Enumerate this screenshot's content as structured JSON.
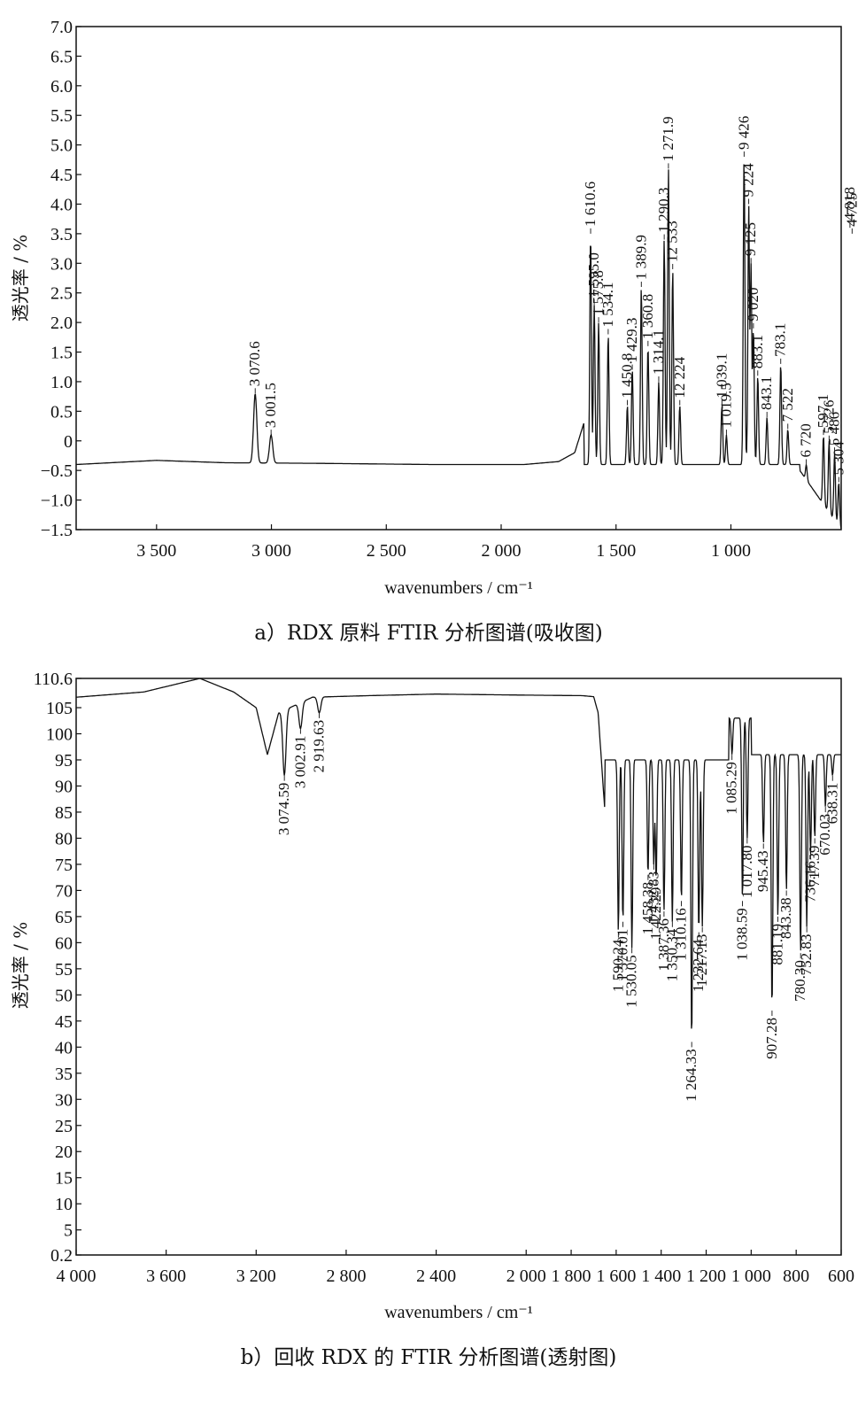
{
  "chart_data": [
    {
      "type": "line",
      "xlabel": "wavenumbers / cm⁻¹",
      "ylabel": "透光率 / %",
      "caption": "a）RDX 原料 FTIR 分析图谱(吸收图)",
      "xlim": [
        3850,
        520
      ],
      "ylim": [
        -1.5,
        7.0
      ],
      "x_ticks": [
        3500,
        3000,
        2500,
        2000,
        1500,
        1000
      ],
      "x_tick_labels": [
        "3 500",
        "3 000",
        "2 500",
        "2 000",
        "1 500",
        "1 000"
      ],
      "y_ticks": [
        -1.5,
        -1.0,
        -0.5,
        0,
        0.5,
        1.0,
        1.5,
        2.0,
        2.5,
        3.0,
        3.5,
        4.0,
        4.5,
        5.0,
        5.5,
        6.0,
        6.5,
        7.0
      ],
      "y_tick_labels": [
        "−1.5",
        "−1.0",
        "−0.5",
        "0",
        "0.5",
        "1.0",
        "1.5",
        "2.0",
        "2.5",
        "3.0",
        "3.5",
        "4.0",
        "4.5",
        "5.0",
        "5.5",
        "6.0",
        "6.5",
        "7.0"
      ],
      "baseline": -0.4,
      "background_points": [
        [
          3850,
          -0.4
        ],
        [
          3500,
          -0.33
        ],
        [
          3200,
          -0.37
        ],
        [
          2800,
          -0.38
        ],
        [
          2300,
          -0.4
        ],
        [
          1900,
          -0.4
        ],
        [
          1750,
          -0.35
        ],
        [
          1680,
          -0.2
        ],
        [
          1640,
          0.3
        ]
      ],
      "peaks": [
        {
          "label": "3 070.6",
          "x": 3070.6,
          "y": 0.8
        },
        {
          "label": "3 001.5",
          "x": 3001.5,
          "y": 0.1
        },
        {
          "label": "1 610.6",
          "x": 1610.6,
          "y": 3.5
        },
        {
          "label": "1 595.0",
          "x": 1595.0,
          "y": 2.3
        },
        {
          "label": "1 575.8",
          "x": 1575.8,
          "y": 2.0
        },
        {
          "label": "1 534.1",
          "x": 1534.1,
          "y": 1.8
        },
        {
          "label": "1 450.8",
          "x": 1450.8,
          "y": 0.6
        },
        {
          "label": "1 429.3",
          "x": 1429.3,
          "y": 1.2
        },
        {
          "label": "1 389.9",
          "x": 1389.9,
          "y": 2.6
        },
        {
          "label": "1 360.8",
          "x": 1360.8,
          "y": 1.6
        },
        {
          "label": "1 314.1",
          "x": 1314.1,
          "y": 1.0
        },
        {
          "label": "1 290.3",
          "x": 1290.3,
          "y": 3.4
        },
        {
          "label": "1 271.9",
          "x": 1271.9,
          "y": 4.6
        },
        {
          "label": "12 533",
          "x": 1253.3,
          "y": 2.9
        },
        {
          "label": "12 224",
          "x": 1222.4,
          "y": 0.6
        },
        {
          "label": "1 039.1",
          "x": 1039.1,
          "y": 0.6
        },
        {
          "label": "1 019.5",
          "x": 1019.5,
          "y": 0.1
        },
        {
          "label": "9 426",
          "x": 942.6,
          "y": 4.8
        },
        {
          "label": "9 224",
          "x": 922.4,
          "y": 4.0
        },
        {
          "label": "9 125",
          "x": 912.5,
          "y": 3.0
        },
        {
          "label": "9 020",
          "x": 902.0,
          "y": 1.9
        },
        {
          "label": "883.1",
          "x": 883.1,
          "y": 1.1
        },
        {
          "label": "843.1",
          "x": 843.1,
          "y": 0.4
        },
        {
          "label": "783.1",
          "x": 783.1,
          "y": 1.3
        },
        {
          "label": "7 522",
          "x": 752.2,
          "y": 0.2
        },
        {
          "label": "6 720",
          "x": 672.0,
          "y": -0.4
        },
        {
          "label": "597.1",
          "x": 597.1,
          "y": 0.1
        },
        {
          "label": "5 726",
          "x": 572.6,
          "y": 0.0
        },
        {
          "label": "5 486",
          "x": 548.6,
          "y": -0.2
        },
        {
          "label": "5 304",
          "x": 530.4,
          "y": -0.7
        },
        {
          "label": "4 818",
          "x": 481.8,
          "y": 3.6
        },
        {
          "label": "4 725",
          "x": 472.5,
          "y": 3.5
        }
      ]
    },
    {
      "type": "line",
      "xlabel": "wavenumbers / cm⁻¹",
      "ylabel": "透光率 / %",
      "caption": "b）回收 RDX 的 FTIR 分析图谱(透射图)",
      "xlim": [
        4000,
        600
      ],
      "ylim": [
        0.2,
        110.6
      ],
      "x_ticks": [
        4000,
        3600,
        3200,
        2800,
        2400,
        2000,
        1800,
        1600,
        1400,
        1200,
        1000,
        800,
        600
      ],
      "x_tick_labels": [
        "4 000",
        "3 600",
        "3 200",
        "2 800",
        "2 400",
        "2 000",
        "1 800",
        "1 600",
        "1 400",
        "1 200",
        "1 000",
        "800",
        "600"
      ],
      "y_ticks": [
        0.2,
        5,
        10,
        15,
        20,
        25,
        30,
        35,
        40,
        45,
        50,
        55,
        60,
        65,
        70,
        75,
        80,
        85,
        90,
        95,
        100,
        105,
        110.6
      ],
      "y_tick_labels": [
        "0.2",
        "5",
        "10",
        "15",
        "20",
        "25",
        "30",
        "35",
        "40",
        "45",
        "50",
        "55",
        "60",
        "65",
        "70",
        "75",
        "80",
        "85",
        "90",
        "95",
        "100",
        "105",
        "110.6"
      ],
      "background_points": [
        [
          4000,
          107
        ],
        [
          3700,
          108
        ],
        [
          3450,
          110.6
        ],
        [
          3300,
          108
        ],
        [
          3200,
          105
        ],
        [
          3150,
          96
        ],
        [
          3100,
          104
        ],
        [
          2950,
          107
        ],
        [
          2700,
          107.3
        ],
        [
          2400,
          107.6
        ],
        [
          2000,
          107.4
        ],
        [
          1750,
          107.3
        ],
        [
          1700,
          107.1
        ],
        [
          1680,
          104
        ],
        [
          1650,
          85
        ]
      ],
      "troughs": [
        {
          "label": "3 074.59",
          "x": 3074.59,
          "y": 92
        },
        {
          "label": "3 002.91",
          "x": 3002.91,
          "y": 101
        },
        {
          "label": "2 919.63",
          "x": 2919.63,
          "y": 104
        },
        {
          "label": "1 590.24",
          "x": 1590.24,
          "y": 62
        },
        {
          "label": "1 570.01",
          "x": 1570.01,
          "y": 64
        },
        {
          "label": "1 530.05",
          "x": 1530.05,
          "y": 59
        },
        {
          "label": "1 458.38",
          "x": 1458.38,
          "y": 73
        },
        {
          "label": "1 432.83",
          "x": 1432.83,
          "y": 75
        },
        {
          "label": "1 422.29",
          "x": 1422.29,
          "y": 72
        },
        {
          "label": "1 387.36",
          "x": 1387.36,
          "y": 66
        },
        {
          "label": "1 350.34",
          "x": 1350.34,
          "y": 64
        },
        {
          "label": "1 310.16",
          "x": 1310.16,
          "y": 68
        },
        {
          "label": "1 264.33",
          "x": 1264.33,
          "y": 41
        },
        {
          "label": "1 232.64",
          "x": 1232.64,
          "y": 62
        },
        {
          "label": "1 217.13",
          "x": 1217.13,
          "y": 63
        },
        {
          "label": "1 085.29",
          "x": 1085.29,
          "y": 96
        },
        {
          "label": "1 038.59",
          "x": 1038.59,
          "y": 68
        },
        {
          "label": "1 017.80",
          "x": 1017.8,
          "y": 80
        },
        {
          "label": "945.43",
          "x": 945.43,
          "y": 79
        },
        {
          "label": "907.28",
          "x": 907.28,
          "y": 47
        },
        {
          "label": "881.19",
          "x": 881.19,
          "y": 65
        },
        {
          "label": "843.38",
          "x": 843.38,
          "y": 70
        },
        {
          "label": "780.30",
          "x": 780.3,
          "y": 58
        },
        {
          "label": "752.83",
          "x": 752.83,
          "y": 63
        },
        {
          "label": "736.16",
          "x": 736.16,
          "y": 77
        },
        {
          "label": "717.39",
          "x": 717.39,
          "y": 80
        },
        {
          "label": "670.03",
          "x": 670.03,
          "y": 86
        },
        {
          "label": "638.31",
          "x": 638.31,
          "y": 92
        }
      ]
    }
  ]
}
